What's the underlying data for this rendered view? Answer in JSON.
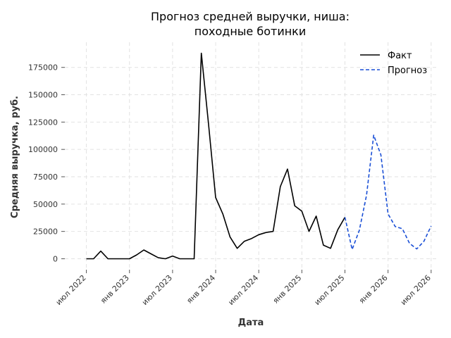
{
  "chart_data": {
    "type": "line",
    "title_line1": "Прогноз средней выручки, ниша:",
    "title_line2": "походные ботинки",
    "xlabel": "Дата",
    "ylabel": "Средняя выручка, руб.",
    "ylim": [
      -10000,
      198000
    ],
    "yticks": [
      0,
      25000,
      50000,
      75000,
      100000,
      125000,
      150000,
      175000
    ],
    "ytick_labels": [
      "0",
      "25000",
      "50000",
      "75000",
      "100000",
      "125000",
      "150000",
      "175000"
    ],
    "xlim": [
      "2022-04",
      "2026-08"
    ],
    "xticks": [
      {
        "date": "2022-07",
        "label": "июл 2022"
      },
      {
        "date": "2023-01",
        "label": "янв 2023"
      },
      {
        "date": "2023-07",
        "label": "июл 2023"
      },
      {
        "date": "2024-01",
        "label": "янв 2024"
      },
      {
        "date": "2024-07",
        "label": "июл 2024"
      },
      {
        "date": "2025-01",
        "label": "янв 2025"
      },
      {
        "date": "2025-07",
        "label": "июл 2025"
      },
      {
        "date": "2026-01",
        "label": "янв 2026"
      },
      {
        "date": "2026-07",
        "label": "июл 2026"
      }
    ],
    "grid": true,
    "legend_position": "top-right",
    "series": [
      {
        "name": "Факт",
        "color": "#000000",
        "style": "solid",
        "points": [
          [
            "2022-07",
            0
          ],
          [
            "2022-08",
            0
          ],
          [
            "2022-09",
            7000
          ],
          [
            "2022-10",
            0
          ],
          [
            "2022-11",
            0
          ],
          [
            "2022-12",
            0
          ],
          [
            "2023-01",
            0
          ],
          [
            "2023-02",
            3500
          ],
          [
            "2023-03",
            8000
          ],
          [
            "2023-04",
            4500
          ],
          [
            "2023-05",
            1000
          ],
          [
            "2023-06",
            0
          ],
          [
            "2023-07",
            2500
          ],
          [
            "2023-08",
            0
          ],
          [
            "2023-09",
            0
          ],
          [
            "2023-10",
            0
          ],
          [
            "2023-11",
            188000
          ],
          [
            "2023-12",
            124000
          ],
          [
            "2024-01",
            56000
          ],
          [
            "2024-02",
            41000
          ],
          [
            "2024-03",
            20000
          ],
          [
            "2024-04",
            9500
          ],
          [
            "2024-05",
            16000
          ],
          [
            "2024-06",
            18500
          ],
          [
            "2024-07",
            22000
          ],
          [
            "2024-08",
            24000
          ],
          [
            "2024-09",
            25000
          ],
          [
            "2024-10",
            66000
          ],
          [
            "2024-11",
            82000
          ],
          [
            "2024-12",
            48500
          ],
          [
            "2025-01",
            43500
          ],
          [
            "2025-02",
            25000
          ],
          [
            "2025-03",
            39000
          ],
          [
            "2025-04",
            12500
          ],
          [
            "2025-05",
            9500
          ],
          [
            "2025-06",
            26500
          ],
          [
            "2025-07",
            38000
          ]
        ]
      },
      {
        "name": "Прогноз",
        "color": "#1a4fd6",
        "style": "dashed",
        "points": [
          [
            "2025-07",
            38000
          ],
          [
            "2025-08",
            8500
          ],
          [
            "2025-09",
            26000
          ],
          [
            "2025-10",
            58000
          ],
          [
            "2025-11",
            113000
          ],
          [
            "2025-12",
            95000
          ],
          [
            "2026-01",
            41000
          ],
          [
            "2026-02",
            29500
          ],
          [
            "2026-03",
            27500
          ],
          [
            "2026-04",
            14000
          ],
          [
            "2026-05",
            9000
          ],
          [
            "2026-06",
            16000
          ],
          [
            "2026-07",
            30000
          ]
        ]
      }
    ]
  }
}
